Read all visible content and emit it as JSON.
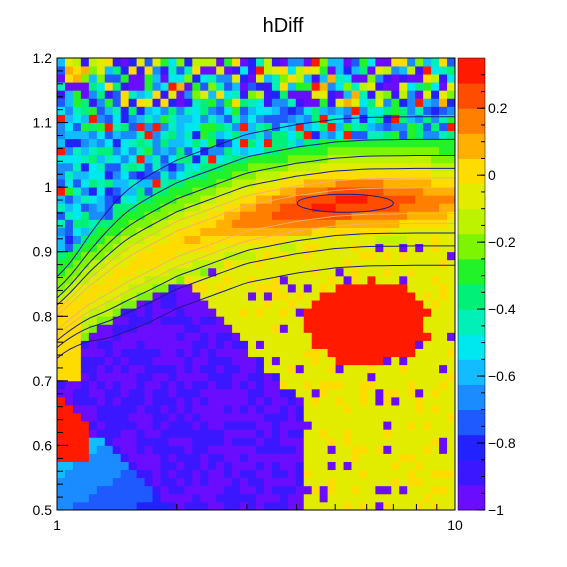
{
  "chart_data": {
    "type": "heatmap",
    "title": "hDiff",
    "xlabel": "",
    "ylabel": "",
    "x_scale": "log",
    "xlim": [
      1,
      10
    ],
    "ylim": [
      0.5,
      1.2
    ],
    "x_tick_labels": [
      "1",
      "10"
    ],
    "y_tick_labels": [
      "0.5",
      "0.6",
      "0.7",
      "0.8",
      "0.9",
      "1",
      "1.1",
      "1.2"
    ],
    "z_range": [
      -1,
      0.35
    ],
    "colorbar_tick_labels": [
      "−1",
      "−0.8",
      "−0.6",
      "−0.4",
      "−0.2",
      "0",
      "0.2"
    ],
    "colorbar_values": [
      -1,
      -0.8,
      -0.6,
      -0.4,
      -0.2,
      0,
      0.2
    ],
    "palette": [
      "#6a0dff",
      "#3b17ff",
      "#2222ff",
      "#1e5aff",
      "#1a8cff",
      "#12bcff",
      "#00e8ef",
      "#00f0b8",
      "#00f078",
      "#22f22a",
      "#7df500",
      "#bdf300",
      "#e2ec00",
      "#ffdc00",
      "#ffb000",
      "#ff8000",
      "#ff4d00",
      "#ff1a00"
    ],
    "ridge": {
      "description_x": [
        1,
        1.2,
        1.5,
        2,
        3,
        4,
        5,
        6,
        8,
        10
      ],
      "center_y": [
        0.79,
        0.832,
        0.872,
        0.912,
        0.952,
        0.967,
        0.975,
        0.978,
        0.979,
        0.979
      ],
      "peak_value_near": {
        "x": 5.3,
        "y": 0.975,
        "z": 0.3
      }
    },
    "hot_blob": {
      "x_range": [
        4,
        9
      ],
      "y_range": [
        0.73,
        0.85
      ],
      "z": 0.35
    },
    "low_region": {
      "description": "purple band below ridge, x 1.2-4, y 0.5-0.75",
      "z": -0.95
    },
    "contours": "blue contour lines following the ridge, outer lines near y=1.1 and y=0.65"
  }
}
